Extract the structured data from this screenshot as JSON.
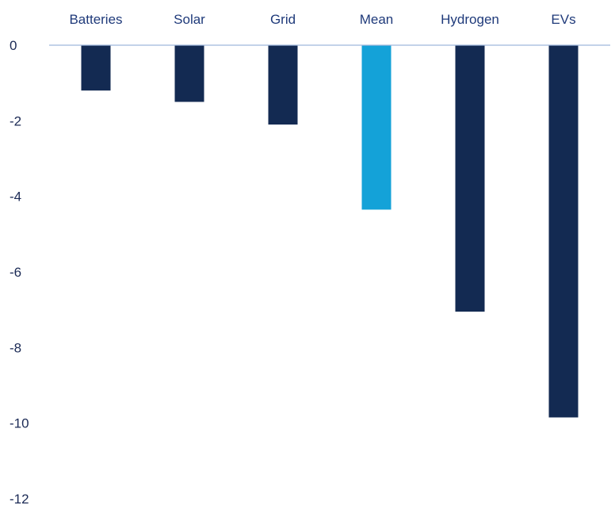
{
  "chart_data": {
    "type": "bar",
    "title": "",
    "xlabel": "",
    "ylabel": "",
    "categories": [
      "Batteries",
      "Solar",
      "Grid",
      "Mean",
      "Hydrogen",
      "EVs"
    ],
    "series": [
      {
        "values": [
          -1.2,
          -1.5,
          -2.1,
          -4.35,
          -7.05,
          -9.85
        ]
      }
    ],
    "ylim": [
      -12,
      0
    ],
    "yticks": [
      0,
      -2,
      -4,
      -6,
      -8,
      -10,
      -12
    ],
    "ytick_labels": [
      "0",
      "-2",
      "-4",
      "-6",
      "-8",
      "-10",
      "-12"
    ],
    "category_labels_position": "top",
    "grid": false,
    "legend": "none",
    "highlight_category": "Mean",
    "colors": {
      "bar": "#132a52",
      "highlight": "#14a2d8",
      "category_text": "#1f3a7a",
      "tick_text": "#1b2a55",
      "axis_line": "#9fb7dc"
    }
  }
}
